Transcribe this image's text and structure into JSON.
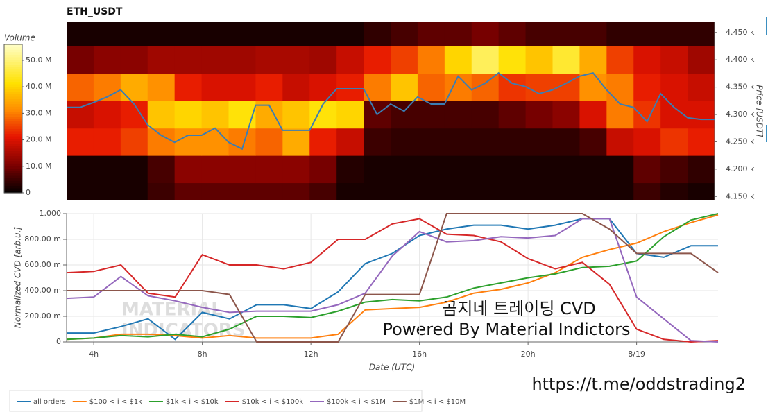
{
  "chart_data": [
    {
      "type": "heatmap",
      "title": "ETH_USDT",
      "y_label": "Price [USDT]",
      "xlim": [
        3,
        27
      ],
      "ylim": [
        4144,
        4470
      ],
      "yticks": [
        {
          "value": 4150,
          "label": "4.150 k"
        },
        {
          "value": 4200,
          "label": "4.200 k"
        },
        {
          "value": 4250,
          "label": "4.250 k"
        },
        {
          "value": 4300,
          "label": "4.300 k"
        },
        {
          "value": 4350,
          "label": "4.350 k"
        },
        {
          "value": 4400,
          "label": "4.400 k"
        },
        {
          "value": 4450,
          "label": "4.450 k"
        }
      ],
      "xbins": [
        3,
        4,
        5,
        6,
        7,
        8,
        9,
        10,
        11,
        12,
        13,
        14,
        15,
        16,
        17,
        18,
        19,
        20,
        21,
        22,
        23,
        24,
        25,
        26,
        27
      ],
      "ybins": [
        4125,
        4175,
        4225,
        4275,
        4325,
        4375,
        4425,
        4475
      ],
      "z": [
        [
          2,
          2,
          2,
          5,
          8,
          8,
          8,
          8,
          8,
          6,
          2,
          2,
          2,
          2,
          2,
          2,
          2,
          2,
          2,
          2,
          2,
          5,
          3,
          2
        ],
        [
          2,
          2,
          2,
          6,
          12,
          12,
          12,
          12,
          12,
          10,
          3,
          2,
          2,
          2,
          2,
          2,
          2,
          2,
          2,
          2,
          2,
          8,
          6,
          4
        ],
        [
          22,
          22,
          25,
          30,
          32,
          32,
          30,
          28,
          35,
          22,
          18,
          5,
          4,
          4,
          4,
          4,
          4,
          4,
          4,
          6,
          18,
          20,
          24,
          22
        ],
        [
          18,
          20,
          22,
          38,
          40,
          38,
          42,
          35,
          38,
          42,
          40,
          8,
          6,
          6,
          6,
          6,
          8,
          10,
          12,
          20,
          30,
          24,
          20,
          20
        ],
        [
          28,
          30,
          35,
          32,
          22,
          20,
          20,
          22,
          18,
          20,
          22,
          30,
          38,
          28,
          30,
          28,
          24,
          25,
          25,
          32,
          30,
          22,
          20,
          18
        ],
        [
          10,
          12,
          12,
          14,
          14,
          14,
          14,
          15,
          15,
          14,
          18,
          22,
          25,
          30,
          40,
          48,
          42,
          38,
          45,
          35,
          25,
          20,
          18,
          14
        ],
        [
          2,
          2,
          2,
          2,
          2,
          2,
          2,
          2,
          2,
          2,
          2,
          4,
          6,
          8,
          8,
          10,
          8,
          6,
          6,
          6,
          4,
          4,
          4,
          4
        ]
      ],
      "colorbar": {
        "label": "Volume",
        "clim": [
          0,
          56
        ],
        "ticks": [
          0,
          {
            "value": 10,
            "label": "10.0 M"
          },
          {
            "value": 20,
            "label": "20.0 M"
          },
          {
            "value": 30,
            "label": "30.0 M"
          },
          {
            "value": 40,
            "label": "40.0 M"
          },
          {
            "value": 50,
            "label": "50.0 M"
          }
        ]
      },
      "price": {
        "color": "#3b7db3",
        "x": [
          3,
          3.5,
          4,
          4.5,
          5,
          5.5,
          6,
          6.5,
          7,
          7.5,
          8,
          8.5,
          9,
          9.5,
          10,
          10.5,
          11,
          11.5,
          12,
          12.5,
          13,
          13.5,
          14,
          14.5,
          15,
          15.5,
          16,
          16.5,
          17,
          17.5,
          18,
          18.5,
          19,
          19.5,
          20,
          20.5,
          21,
          21.5,
          22,
          22.5,
          23,
          23.5,
          24,
          24.5,
          25,
          25.5,
          26,
          26.5,
          27
        ],
        "values": [
          4313,
          4313,
          4322,
          4332,
          4345,
          4319,
          4281,
          4262,
          4249,
          4262,
          4262,
          4275,
          4249,
          4237,
          4317,
          4317,
          4271,
          4271,
          4271,
          4319,
          4347,
          4347,
          4347,
          4300,
          4319,
          4306,
          4332,
          4319,
          4319,
          4370,
          4345,
          4357,
          4376,
          4357,
          4351,
          4338,
          4345,
          4357,
          4370,
          4376,
          4345,
          4319,
          4313,
          4287,
          4338,
          4313,
          4294,
          4291,
          4291
        ]
      }
    },
    {
      "type": "line",
      "x_label": "Date (UTC)",
      "y_label": "Normalized CVD [arb.u.]",
      "grid": true,
      "xlim": [
        3,
        27
      ],
      "ylim": [
        0,
        1
      ],
      "xticks": [
        {
          "value": 4,
          "label": "4h"
        },
        {
          "value": 8,
          "label": "8h"
        },
        {
          "value": 12,
          "label": "12h"
        },
        {
          "value": 16,
          "label": "16h"
        },
        {
          "value": 20,
          "label": "20h"
        },
        {
          "value": 24,
          "label": "8/19"
        }
      ],
      "yticks": [
        0,
        {
          "value": 0.2,
          "label": "200.00 m"
        },
        {
          "value": 0.4,
          "label": "400.00 m"
        },
        {
          "value": 0.6,
          "label": "600.00 m"
        },
        {
          "value": 0.8,
          "label": "800.00 m"
        },
        {
          "value": 1,
          "label": "1.000"
        }
      ],
      "x": [
        3,
        4,
        5,
        6,
        7,
        8,
        9,
        10,
        11,
        12,
        13,
        14,
        15,
        16,
        17,
        18,
        19,
        20,
        21,
        22,
        23,
        24,
        25,
        26,
        27
      ],
      "series": [
        {
          "name": "all orders",
          "color": "#1f77b4",
          "values": [
            0.07,
            0.07,
            0.12,
            0.18,
            0.02,
            0.23,
            0.18,
            0.29,
            0.29,
            0.26,
            0.39,
            0.61,
            0.69,
            0.83,
            0.88,
            0.91,
            0.91,
            0.88,
            0.91,
            0.96,
            0.96,
            0.69,
            0.66,
            0.75,
            0.75
          ]
        },
        {
          "name": "$100 < i < $1k",
          "color": "#ff7f0e",
          "values": [
            0.02,
            0.03,
            0.06,
            0.06,
            0.05,
            0.03,
            0.05,
            0.03,
            0.03,
            0.03,
            0.06,
            0.25,
            0.26,
            0.27,
            0.31,
            0.38,
            0.41,
            0.46,
            0.54,
            0.66,
            0.72,
            0.77,
            0.86,
            0.93,
            0.99
          ]
        },
        {
          "name": "$1k < i < $10k",
          "color": "#2ca02c",
          "values": [
            0.02,
            0.03,
            0.05,
            0.04,
            0.06,
            0.04,
            0.1,
            0.2,
            0.2,
            0.19,
            0.24,
            0.31,
            0.33,
            0.32,
            0.35,
            0.42,
            0.46,
            0.5,
            0.53,
            0.58,
            0.59,
            0.63,
            0.82,
            0.95,
            1
          ]
        },
        {
          "name": "$10k < i < $100k",
          "color": "#d62728",
          "values": [
            0.54,
            0.55,
            0.6,
            0.38,
            0.35,
            0.68,
            0.6,
            0.6,
            0.57,
            0.62,
            0.8,
            0.8,
            0.92,
            0.96,
            0.84,
            0.83,
            0.78,
            0.65,
            0.57,
            0.62,
            0.45,
            0.1,
            0.02,
            0,
            0.01
          ]
        },
        {
          "name": "$100k < i < $1M",
          "color": "#9467bd",
          "values": [
            0.34,
            0.35,
            0.51,
            0.36,
            0.32,
            0.27,
            0.23,
            0.24,
            0.24,
            0.24,
            0.29,
            0.38,
            0.67,
            0.86,
            0.78,
            0.79,
            0.82,
            0.81,
            0.83,
            0.96,
            0.96,
            0.35,
            0.18,
            0.01,
            0
          ]
        },
        {
          "name": "$1M < i < $10M",
          "color": "#8c564b",
          "values": [
            0.4,
            0.4,
            0.4,
            0.4,
            0.4,
            0.4,
            0.37,
            0,
            0,
            0,
            0,
            0.37,
            0.37,
            0.37,
            1,
            1,
            1,
            1,
            1,
            1,
            0.88,
            0.69,
            0.69,
            0.69,
            0.54
          ]
        }
      ],
      "annotations": [
        "곰지네 트레이딩 CVD",
        "Powered By Material Indictors"
      ],
      "watermark": [
        "MATERIAL",
        "INDICATORS"
      ]
    }
  ],
  "footer_link": "https://t.me/oddstrading2"
}
